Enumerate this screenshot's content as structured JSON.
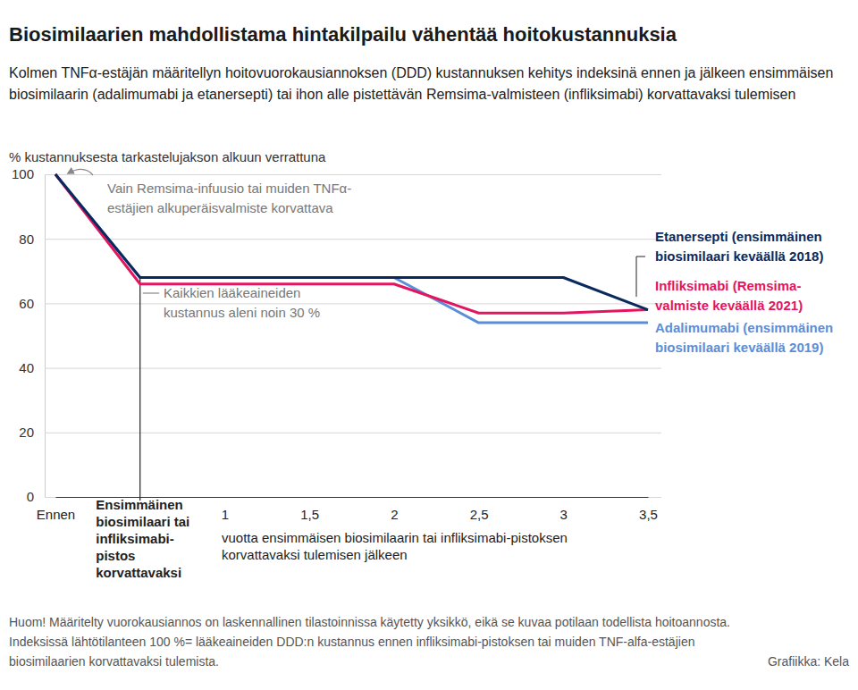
{
  "chart_data": {
    "type": "line",
    "title": "Biosimilaarien mahdollistama hintakilpailu vähentää hoitokustannuksia",
    "subtitle": "Kolmen TNFα-estäjän määritellyn hoitovuorokausiannoksen (DDD) kustannuksen kehitys indeksinä ennen ja jälkeen ensimmäisen biosimilaarin (adalimumabi ja etanersepti) tai ihon alle pistettävän Remsima-valmisteen (infliksimabi) korvattavaksi tulemisen",
    "y_label": "% kustannuksesta tarkastelujakson alkuun verrattuna",
    "x_label": "vuotta ensimmäisen biosimilaarin tai infliksimabi-pistoksen korvattavaksi tulemisen jälkeen",
    "categories": [
      "Ennen",
      "Ensimmäinen biosimilaari tai infliksimabi-pistos korvattavaksi",
      "1",
      "1,5",
      "2",
      "2,5",
      "3",
      "3,5"
    ],
    "series": [
      {
        "name": "Etanersepti (ensimmäinen biosimilaari keväällä 2018)",
        "color": "#0a2a5e",
        "values": [
          100,
          68,
          68,
          68,
          68,
          68,
          68,
          58
        ]
      },
      {
        "name": "Infliksimabi (Remsima-valmiste keväällä 2021)",
        "color": "#e2165e",
        "values": [
          100,
          66,
          66,
          66,
          66,
          57,
          57,
          58
        ]
      },
      {
        "name": "Adalimumabi (ensimmäinen biosimilaari keväällä 2019)",
        "color": "#5b8ed8",
        "values": [
          100,
          68,
          68,
          68,
          68,
          54,
          54,
          54
        ]
      }
    ],
    "ylim": [
      0,
      100
    ],
    "yticks": [
      0,
      20,
      40,
      60,
      80,
      100
    ],
    "grid": true,
    "annotations": [
      {
        "text": "Vain Remsima-infuusio tai muiden TNFα-estäjien alkuperäisvalmiste korvattava"
      },
      {
        "text": "Kaikkien lääkeaineiden kustannus aleni noin 30 %"
      }
    ],
    "note": "Huom! Määritelty vuorokausiannos on laskennallinen tilastoinnissa käytetty yksikkö, eikä se kuvaa potilaan todellista hoitoannosta. Indeksissä lähtötilanteen 100 %= lääkeaineiden DDD:n kustannus ennen infliksimabi-pistoksen tai muiden TNF-alfa-estäjien biosimilaarien korvattavaksi tulemista.",
    "source": "Grafiikka: Kela"
  }
}
